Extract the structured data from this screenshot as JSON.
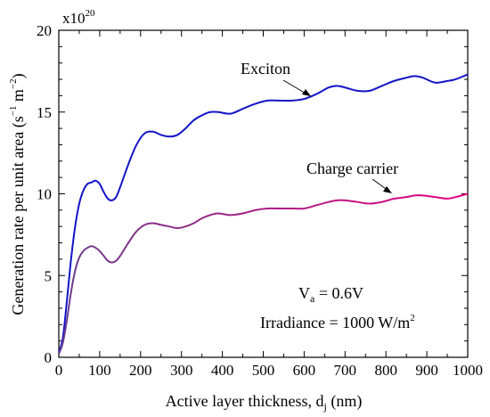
{
  "chart_data": {
    "type": "line",
    "xlabel": "Active layer thickness, d",
    "xlabel_sub": "j",
    "xlabel_unit": " (nm)",
    "ylabel": "Generation rate per unit area (s",
    "ylabel_sup1": "−1",
    "ylabel_mid": " m",
    "ylabel_sup2": "−2",
    "ylabel_end": ")",
    "multiplier_base": "x10",
    "multiplier_exp": "20",
    "xlim": [
      0,
      1000
    ],
    "ylim": [
      0,
      20
    ],
    "x_ticks": [
      0,
      100,
      200,
      300,
      400,
      500,
      600,
      700,
      800,
      900,
      1000
    ],
    "y_ticks": [
      0,
      5,
      10,
      15,
      20
    ],
    "grid": false,
    "series": [
      {
        "name": "Exciton",
        "color": "#1414c8",
        "x": [
          0,
          10,
          20,
          30,
          40,
          50,
          60,
          70,
          80,
          90,
          100,
          110,
          120,
          130,
          140,
          150,
          170,
          190,
          210,
          230,
          250,
          270,
          290,
          310,
          330,
          350,
          370,
          390,
          420,
          450,
          480,
          510,
          540,
          570,
          600,
          630,
          660,
          680,
          700,
          730,
          760,
          790,
          820,
          850,
          870,
          890,
          920,
          950,
          970,
          1000
        ],
        "y": [
          0.3,
          1.2,
          3.5,
          6.0,
          8.0,
          9.4,
          10.2,
          10.6,
          10.7,
          10.8,
          10.6,
          10.1,
          9.7,
          9.6,
          9.8,
          10.4,
          11.8,
          13.0,
          13.7,
          13.8,
          13.6,
          13.5,
          13.6,
          14.0,
          14.5,
          14.8,
          15.0,
          15.0,
          14.9,
          15.2,
          15.5,
          15.7,
          15.7,
          15.7,
          15.8,
          16.1,
          16.5,
          16.6,
          16.5,
          16.3,
          16.3,
          16.6,
          16.9,
          17.1,
          17.2,
          17.1,
          16.8,
          16.9,
          17.0,
          17.3
        ]
      },
      {
        "name": "Charge carrier",
        "color_start": "#6a3d8c",
        "color_end": "#e6007e",
        "x": [
          0,
          10,
          20,
          30,
          40,
          50,
          60,
          70,
          80,
          90,
          100,
          110,
          120,
          130,
          140,
          150,
          170,
          190,
          210,
          230,
          250,
          270,
          290,
          310,
          330,
          350,
          370,
          390,
          420,
          450,
          480,
          510,
          540,
          570,
          600,
          630,
          660,
          680,
          700,
          730,
          760,
          790,
          820,
          850,
          870,
          890,
          920,
          950,
          970,
          1000
        ],
        "y": [
          0.2,
          0.9,
          2.3,
          4.0,
          5.3,
          6.1,
          6.5,
          6.7,
          6.8,
          6.7,
          6.5,
          6.2,
          5.9,
          5.8,
          5.9,
          6.2,
          7.0,
          7.7,
          8.1,
          8.2,
          8.1,
          8.0,
          7.9,
          8.0,
          8.2,
          8.5,
          8.7,
          8.8,
          8.7,
          8.8,
          9.0,
          9.1,
          9.1,
          9.1,
          9.1,
          9.3,
          9.5,
          9.6,
          9.6,
          9.5,
          9.4,
          9.5,
          9.7,
          9.8,
          9.9,
          9.9,
          9.8,
          9.7,
          9.8,
          10.0
        ]
      }
    ],
    "annotations": [
      {
        "text": "Exciton",
        "series": 0
      },
      {
        "text": "Charge carrier",
        "series": 1
      }
    ],
    "conditions": {
      "va_prefix": "V",
      "va_sub": "a",
      "va_value": " = 0.6V",
      "irradiance_text": "Irradiance = 1000 W/m",
      "irradiance_sup": "2"
    }
  }
}
